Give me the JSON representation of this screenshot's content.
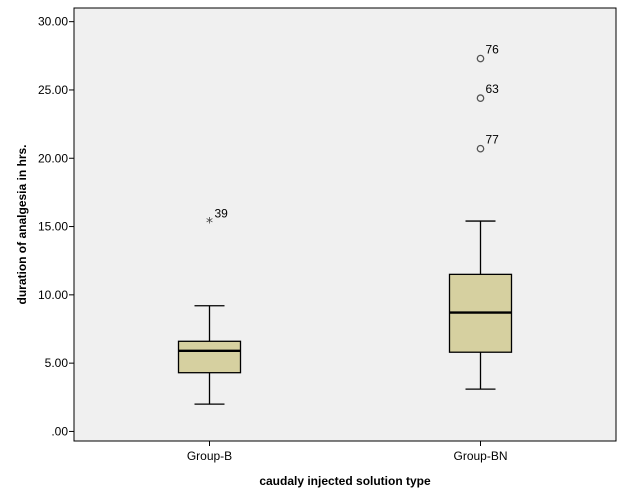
{
  "chart_data": {
    "type": "boxplot",
    "xlabel": "caudaly injected solution type",
    "ylabel": "duration of analgesia in hrs.",
    "ylim": [
      -0.7,
      31.0
    ],
    "yticks": [
      0,
      5,
      10,
      15,
      20,
      25,
      30
    ],
    "ytick_labels": [
      ".00",
      "5.00",
      "10.00",
      "15.00",
      "20.00",
      "25.00",
      "30.00"
    ],
    "grid": false,
    "legend": "none",
    "colors": {
      "plot_background": "#f0f0f0",
      "box_fill": "#d6d0a0",
      "box_stroke": "#000000",
      "outlier_stroke": "#555555"
    },
    "categories": [
      "Group-B",
      "Group-BN"
    ],
    "groups": [
      {
        "name": "Group-B",
        "whisker_low": 2.0,
        "q1": 4.3,
        "median": 5.9,
        "q3": 6.6,
        "whisker_high": 9.2,
        "outliers": [
          {
            "label": "39",
            "value": 15.3,
            "marker": "star"
          }
        ]
      },
      {
        "name": "Group-BN",
        "whisker_low": 3.1,
        "q1": 5.8,
        "median": 8.7,
        "q3": 11.5,
        "whisker_high": 15.4,
        "outliers": [
          {
            "label": "76",
            "value": 27.3,
            "marker": "circle"
          },
          {
            "label": "63",
            "value": 24.4,
            "marker": "circle"
          },
          {
            "label": "77",
            "value": 20.7,
            "marker": "circle"
          }
        ]
      }
    ]
  }
}
